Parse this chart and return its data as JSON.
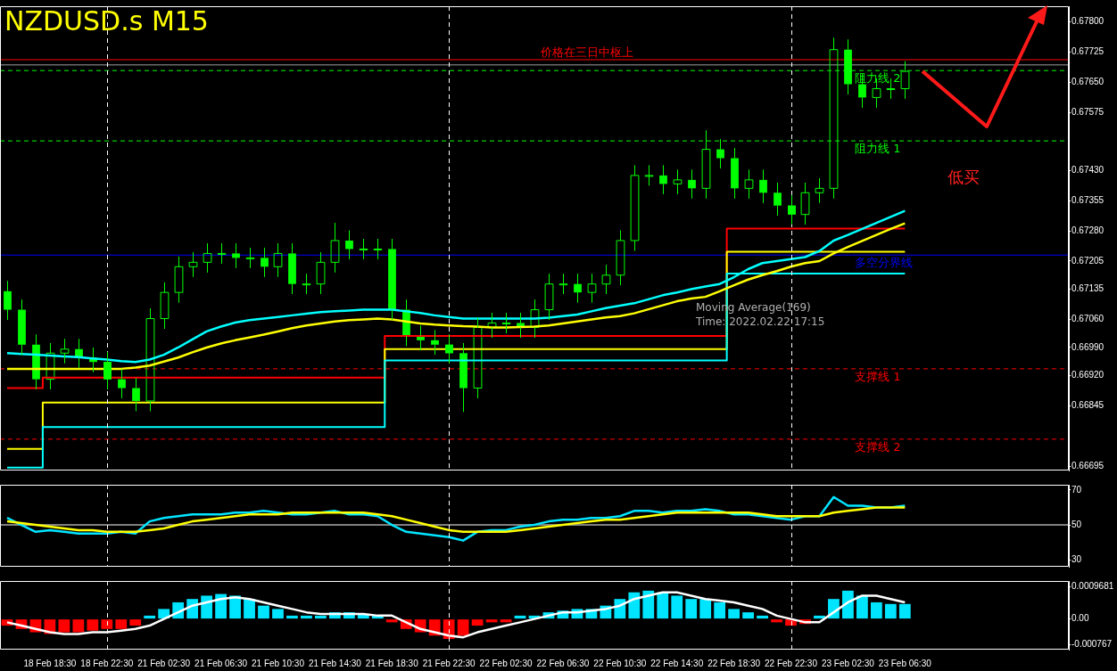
{
  "chart_data": [
    {
      "type": "candlestick",
      "title": "NZDUSD.s M15",
      "tick_labels": "y",
      "grid": false,
      "legend": false,
      "categories": [
        null,
        null,
        null,
        "18 Feb 18:30",
        null,
        null,
        null,
        "18 Feb 22:30",
        null,
        null,
        null,
        "21 Feb 02:30",
        null,
        null,
        null,
        "21 Feb 06:30",
        null,
        null,
        null,
        "21 Feb 10:30",
        null,
        null,
        null,
        "21 Feb 14:30",
        null,
        null,
        null,
        "21 Feb 18:30",
        null,
        null,
        null,
        "21 Feb 22:30",
        null,
        null,
        null,
        "22 Feb 02:30",
        null,
        null,
        null,
        "22 Feb 06:30",
        null,
        null,
        null,
        "22 Feb 10:30",
        null,
        null,
        null,
        "22 Feb 14:30",
        null,
        null,
        null,
        "22 Feb 18:30",
        null,
        null,
        null,
        "22 Feb 22:30",
        null,
        null,
        null,
        "23 Feb 02:30",
        null,
        null,
        null,
        "23 Feb 06:30",
        null,
        null,
        null,
        null,
        null,
        null,
        null,
        null,
        null,
        null,
        null
      ],
      "ylim": [
        0.66684,
        0.67839
      ],
      "yticks": [
        {
          "value": 0.678,
          "label": "0.67800"
        },
        {
          "value": 0.67725,
          "label": "0.67725"
        },
        {
          "value": 0.6765,
          "label": "0.67650"
        },
        {
          "value": 0.67575,
          "label": "0.67575"
        },
        {
          "value": 0.6743,
          "label": "0.67430"
        },
        {
          "value": 0.67355,
          "label": "0.67355"
        },
        {
          "value": 0.6728,
          "label": "0.67280"
        },
        {
          "value": 0.67205,
          "label": "0.67205"
        },
        {
          "value": 0.67135,
          "label": "0.67135"
        },
        {
          "value": 0.6706,
          "label": "0.67060"
        },
        {
          "value": 0.6699,
          "label": "0.66990"
        },
        {
          "value": 0.6692,
          "label": "0.66920"
        },
        {
          "value": 0.66845,
          "label": "0.66845"
        },
        {
          "value": 0.66695,
          "label": "0.66695"
        }
      ],
      "series": [
        {
          "type": "line",
          "color": "#00ffff",
          "values": [
            0.66976,
            0.66974,
            0.66972,
            0.6697,
            0.66968,
            0.66966,
            0.66963,
            0.6696,
            0.66956,
            0.66954,
            0.6696,
            0.66972,
            0.6699,
            0.6701,
            0.6703,
            0.67042,
            0.67052,
            0.67058,
            0.67062,
            0.67066,
            0.6707,
            0.67074,
            0.67078,
            0.6708,
            0.67082,
            0.67084,
            0.67084,
            0.67084,
            0.6708,
            0.67076,
            0.6707,
            0.67066,
            0.67062,
            0.67062,
            0.67062,
            0.67062,
            0.67062,
            0.67062,
            0.67064,
            0.67068,
            0.67072,
            0.6708,
            0.67088,
            0.67094,
            0.671,
            0.6711,
            0.6712,
            0.67127,
            0.67135,
            0.67142,
            0.67148,
            0.67165,
            0.67185,
            0.672,
            0.67205,
            0.6721,
            0.67215,
            0.6723,
            0.67256,
            0.6727,
            0.67285,
            0.673,
            0.67315,
            0.6733,
            null,
            null,
            null,
            null,
            null,
            null,
            null,
            null,
            null,
            null,
            null
          ]
        },
        {
          "type": "line",
          "color": "#ffff00",
          "values": [
            0.66937,
            0.66937,
            0.66937,
            0.66937,
            0.66937,
            0.66937,
            0.66937,
            0.66937,
            0.66937,
            0.6694,
            0.66945,
            0.66955,
            0.66965,
            0.66978,
            0.6699,
            0.67,
            0.67008,
            0.67015,
            0.67022,
            0.6703,
            0.67038,
            0.67045,
            0.6705,
            0.67055,
            0.67058,
            0.6706,
            0.67062,
            0.6706,
            0.67055,
            0.6705,
            0.67047,
            0.67045,
            0.67043,
            0.67042,
            0.6704,
            0.6704,
            0.67041,
            0.67042,
            0.67045,
            0.6705,
            0.67055,
            0.6706,
            0.67065,
            0.67068,
            0.67075,
            0.67085,
            0.67095,
            0.67105,
            0.67112,
            0.67116,
            0.6713,
            0.67145,
            0.67159,
            0.6717,
            0.6718,
            0.67191,
            0.672,
            0.67205,
            0.67224,
            0.6724,
            0.67255,
            0.6727,
            0.67285,
            0.67299,
            null,
            null,
            null,
            null,
            null,
            null,
            null,
            null,
            null,
            null,
            null
          ]
        },
        {
          "type": "step",
          "color": "#00ffff",
          "values": [
            0.66691,
            0.66691,
            0.66691,
            0.66792,
            0.66792,
            0.66792,
            0.66792,
            0.66792,
            0.66792,
            0.66792,
            0.66792,
            0.66792,
            0.66792,
            0.66792,
            0.66792,
            0.66792,
            0.66792,
            0.66792,
            0.66792,
            0.66792,
            0.66792,
            0.66792,
            0.66792,
            0.66792,
            0.66792,
            0.66792,
            0.66792,
            0.66958,
            0.66958,
            0.66958,
            0.66958,
            0.66958,
            0.66958,
            0.66958,
            0.66958,
            0.66958,
            0.66958,
            0.66958,
            0.66958,
            0.66958,
            0.66958,
            0.66958,
            0.66958,
            0.66958,
            0.66958,
            0.66958,
            0.66958,
            0.66958,
            0.66958,
            0.66958,
            0.66958,
            0.67174,
            0.67174,
            0.67174,
            0.67174,
            0.67174,
            0.67174,
            0.67174,
            0.67174,
            0.67174,
            0.67174,
            0.67174,
            0.67174,
            0.67174,
            null,
            null,
            null,
            null,
            null,
            null,
            null,
            null,
            null,
            null,
            null
          ]
        },
        {
          "type": "step",
          "color": "#ffff00",
          "values": [
            0.66738,
            0.66738,
            0.66738,
            0.66853,
            0.66853,
            0.66853,
            0.66853,
            0.66853,
            0.66853,
            0.66853,
            0.66853,
            0.66853,
            0.66853,
            0.66853,
            0.66853,
            0.66853,
            0.66853,
            0.66853,
            0.66853,
            0.66853,
            0.66853,
            0.66853,
            0.66853,
            0.66853,
            0.66853,
            0.66853,
            0.66853,
            0.66986,
            0.66986,
            0.66986,
            0.66986,
            0.66986,
            0.66986,
            0.66986,
            0.66986,
            0.66986,
            0.66986,
            0.66986,
            0.66986,
            0.66986,
            0.66986,
            0.66986,
            0.66986,
            0.66986,
            0.66986,
            0.66986,
            0.66986,
            0.66986,
            0.66986,
            0.66986,
            0.66986,
            0.67228,
            0.67228,
            0.67228,
            0.67228,
            0.67228,
            0.67228,
            0.67228,
            0.67228,
            0.67228,
            0.67228,
            0.67228,
            0.67228,
            0.67228,
            null,
            null,
            null,
            null,
            null,
            null,
            null,
            null,
            null,
            null,
            null
          ]
        },
        {
          "type": "step",
          "color": "#ff0000",
          "values": [
            0.66889,
            0.66889,
            0.66889,
            0.66915,
            0.66915,
            0.66915,
            0.66915,
            0.66915,
            0.66915,
            0.66915,
            0.66915,
            0.66915,
            0.66915,
            0.66915,
            0.66915,
            0.66915,
            0.66915,
            0.66915,
            0.66915,
            0.66915,
            0.66915,
            0.66915,
            0.66915,
            0.66915,
            0.66915,
            0.66915,
            0.66915,
            0.67019,
            0.67019,
            0.67019,
            0.67019,
            0.67019,
            0.67019,
            0.67019,
            0.67019,
            0.67019,
            0.67019,
            0.67019,
            0.67019,
            0.67019,
            0.67019,
            0.67019,
            0.67019,
            0.67019,
            0.67019,
            0.67019,
            0.67019,
            0.67019,
            0.67019,
            0.67019,
            0.67019,
            0.67286,
            0.67286,
            0.67286,
            0.67286,
            0.67286,
            0.67286,
            0.67286,
            0.67286,
            0.67286,
            0.67286,
            0.67286,
            0.67286,
            0.67286,
            null,
            null,
            null,
            null,
            null,
            null,
            null,
            null,
            null,
            null,
            null
          ]
        },
        {
          "color": "#00ff00",
          "ohlc": [
            [
              0.6713,
              0.67155,
              0.67059,
              0.67084
            ],
            [
              0.67084,
              0.67109,
              0.66972,
              0.66997
            ],
            [
              0.66997,
              0.67022,
              0.66886,
              0.66911
            ],
            [
              0.66911,
              0.67001,
              0.66886,
              0.66976
            ],
            [
              0.66976,
              0.67011,
              0.66951,
              0.66986
            ],
            [
              0.66986,
              0.67011,
              0.6694,
              0.66965
            ],
            [
              0.66965,
              0.6699,
              0.66929,
              0.66954
            ],
            [
              0.66954,
              0.66979,
              0.66886,
              0.66911
            ],
            [
              0.66911,
              0.66936,
              0.66864,
              0.66889
            ],
            [
              0.66889,
              0.66914,
              0.66832,
              0.66857
            ],
            [
              0.66857,
              0.67087,
              0.66832,
              0.67062
            ],
            [
              0.67062,
              0.67152,
              0.67037,
              0.67127
            ],
            [
              0.67127,
              0.67216,
              0.67102,
              0.67191
            ],
            [
              0.67191,
              0.67227,
              0.67166,
              0.67202
            ],
            [
              0.67202,
              0.67249,
              0.67177,
              0.67224
            ],
            [
              0.67224,
              0.67249,
              0.67199,
              0.67224
            ],
            [
              0.67224,
              0.67249,
              0.67188,
              0.67213
            ],
            [
              0.67213,
              0.67238,
              0.67188,
              0.67213
            ],
            [
              0.67213,
              0.67238,
              0.67166,
              0.67191
            ],
            [
              0.67191,
              0.67249,
              0.67166,
              0.67224
            ],
            [
              0.67224,
              0.67249,
              0.67123,
              0.67148
            ],
            [
              0.67148,
              0.67173,
              0.67123,
              0.67148
            ],
            [
              0.67148,
              0.67227,
              0.67123,
              0.67202
            ],
            [
              0.67202,
              0.673,
              0.67177,
              0.67256
            ],
            [
              0.67256,
              0.67281,
              0.6721,
              0.67235
            ],
            [
              0.67235,
              0.6726,
              0.6721,
              0.67235
            ],
            [
              0.67235,
              0.6726,
              0.6721,
              0.67235
            ],
            [
              0.67235,
              0.6726,
              0.67059,
              0.67084
            ],
            [
              0.67084,
              0.67109,
              0.66994,
              0.67019
            ],
            [
              0.67019,
              0.67044,
              0.66983,
              0.67008
            ],
            [
              0.67008,
              0.67033,
              0.66972,
              0.66997
            ],
            [
              0.66997,
              0.67022,
              0.66951,
              0.66976
            ],
            [
              0.66976,
              0.67001,
              0.6683,
              0.66889
            ],
            [
              0.66889,
              0.67065,
              0.66864,
              0.6704
            ],
            [
              0.6704,
              0.67076,
              0.67015,
              0.67051
            ],
            [
              0.67051,
              0.67076,
              0.67026,
              0.67051
            ],
            [
              0.67051,
              0.67076,
              0.67015,
              0.6704
            ],
            [
              0.6704,
              0.67109,
              0.67015,
              0.67084
            ],
            [
              0.67084,
              0.67173,
              0.67059,
              0.67148
            ],
            [
              0.67148,
              0.67173,
              0.67123,
              0.67148
            ],
            [
              0.67148,
              0.67173,
              0.67102,
              0.67127
            ],
            [
              0.67127,
              0.67173,
              0.67102,
              0.67148
            ],
            [
              0.67148,
              0.67195,
              0.67123,
              0.6717
            ],
            [
              0.6717,
              0.67281,
              0.67145,
              0.67256
            ],
            [
              0.67256,
              0.67443,
              0.67231,
              0.67418
            ],
            [
              0.67418,
              0.67443,
              0.67393,
              0.67418
            ],
            [
              0.67418,
              0.67443,
              0.67372,
              0.67397
            ],
            [
              0.67397,
              0.67432,
              0.67372,
              0.67407
            ],
            [
              0.67407,
              0.67432,
              0.67361,
              0.67386
            ],
            [
              0.67386,
              0.6753,
              0.67361,
              0.67483
            ],
            [
              0.67483,
              0.67508,
              0.67436,
              0.67461
            ],
            [
              0.67461,
              0.67486,
              0.67361,
              0.67386
            ],
            [
              0.67386,
              0.67432,
              0.67361,
              0.67407
            ],
            [
              0.67407,
              0.67432,
              0.6735,
              0.67375
            ],
            [
              0.67375,
              0.674,
              0.67318,
              0.67343
            ],
            [
              0.67343,
              0.67368,
              0.67296,
              0.67321
            ],
            [
              0.67321,
              0.674,
              0.67296,
              0.67375
            ],
            [
              0.67375,
              0.67411,
              0.6735,
              0.67386
            ],
            [
              0.67386,
              0.6776,
              0.67361,
              0.67731
            ],
            [
              0.67731,
              0.67756,
              0.6762,
              0.67645
            ],
            [
              0.67645,
              0.6767,
              0.67587,
              0.67612
            ],
            [
              0.67612,
              0.67659,
              0.67587,
              0.67634
            ],
            [
              0.67634,
              0.67659,
              0.67609,
              0.67634
            ],
            [
              0.67634,
              0.67702,
              0.67609,
              0.67677
            ],
            null,
            null,
            null,
            null,
            null,
            null,
            null,
            null,
            null,
            null,
            null
          ]
        }
      ],
      "ref_lines": [
        {
          "axis": "y",
          "value": 0.67706,
          "label": "价格在三日中枢上",
          "color": "#ff0000",
          "line_style": "solid"
        },
        {
          "axis": "y",
          "value": 0.67693,
          "label": null,
          "color": "#a0a0a0",
          "line_style": "solid"
        },
        {
          "axis": "y",
          "value": 0.67679,
          "label": "阻力线 2",
          "color": "#00ff00",
          "line_style": "dashed"
        },
        {
          "axis": "y",
          "value": 0.67504,
          "label": "阻力线 1",
          "color": "#00ff00",
          "line_style": "dashed"
        },
        {
          "axis": "y",
          "value": 0.6722,
          "label": "多空分界线",
          "color": "#0000ff",
          "line_style": "solid"
        },
        {
          "axis": "y",
          "value": 0.66937,
          "label": "支撑线 1",
          "color": "#ff0000",
          "line_style": "dashed"
        },
        {
          "axis": "y",
          "value": 0.66762,
          "label": "支撑线 2",
          "color": "#ff0000",
          "line_style": "dashed"
        },
        {
          "axis": "x",
          "value": "18 Feb 22:30",
          "color": "#ffffff",
          "line_style": "dashed"
        },
        {
          "axis": "x",
          "value": "21 Feb 22:30",
          "color": "#ffffff",
          "line_style": "dashed"
        },
        {
          "axis": "x",
          "value": "22 Feb 22:30",
          "color": "#ffffff",
          "line_style": "dashed"
        }
      ],
      "annotations": [
        "低买",
        "Moving Average(169)",
        "Time: 2022.02.22 17:15"
      ]
    },
    {
      "type": "line",
      "tick_labels": "y",
      "grid": false,
      "legend": false,
      "categories": [
        null,
        null,
        null,
        "18 Feb 18:30",
        null,
        null,
        null,
        "18 Feb 22:30",
        null,
        null,
        null,
        "21 Feb 02:30",
        null,
        null,
        null,
        "21 Feb 06:30",
        null,
        null,
        null,
        "21 Feb 10:30",
        null,
        null,
        null,
        "21 Feb 14:30",
        null,
        null,
        null,
        "21 Feb 18:30",
        null,
        null,
        null,
        "21 Feb 22:30",
        null,
        null,
        null,
        "22 Feb 02:30",
        null,
        null,
        null,
        "22 Feb 06:30",
        null,
        null,
        null,
        "22 Feb 10:30",
        null,
        null,
        null,
        "22 Feb 14:30",
        null,
        null,
        null,
        "22 Feb 18:30",
        null,
        null,
        null,
        "22 Feb 22:30",
        null,
        null,
        null,
        "23 Feb 02:30",
        null,
        null,
        null,
        "23 Feb 06:30",
        null,
        null,
        null,
        null,
        null,
        null,
        null,
        null,
        null,
        null,
        null
      ],
      "ylim": [
        26,
        73
      ],
      "yticks": [
        30,
        50,
        70
      ],
      "series": [
        {
          "color": "#ffff00",
          "values": [
            52,
            51,
            50,
            49,
            48,
            47,
            47,
            46,
            46,
            46,
            47,
            48,
            50,
            52,
            53,
            54,
            55,
            56,
            56,
            56,
            57,
            57,
            57,
            57,
            57,
            57,
            56,
            55,
            53,
            51,
            49,
            47,
            46,
            46,
            46,
            46,
            47,
            48,
            49,
            50,
            51,
            52,
            53,
            53,
            54,
            55,
            56,
            57,
            57,
            57,
            57,
            57,
            57,
            56,
            55,
            55,
            55,
            55,
            57,
            58,
            59,
            60,
            60,
            60,
            null,
            null,
            null,
            null,
            null,
            null,
            null,
            null,
            null,
            null,
            null
          ]
        },
        {
          "color": "#00e5ff",
          "values": [
            54,
            50,
            46,
            47,
            46,
            45,
            45,
            45,
            46,
            45,
            52,
            54,
            55,
            56,
            56,
            56,
            57,
            57,
            58,
            57,
            56,
            56,
            57,
            58,
            56,
            56,
            55,
            50,
            46,
            45,
            44,
            43,
            41,
            46,
            47,
            47,
            49,
            50,
            52,
            53,
            53,
            54,
            54,
            55,
            58,
            58,
            57,
            58,
            58,
            59,
            58,
            56,
            56,
            55,
            54,
            53,
            55,
            55,
            66,
            61,
            61,
            60,
            60,
            61,
            null,
            null,
            null,
            null,
            null,
            null,
            null,
            null,
            null,
            null,
            null
          ]
        }
      ],
      "ref_lines": [
        {
          "axis": "y",
          "value": 50,
          "color": "#ffffff",
          "line_style": "solid"
        },
        {
          "axis": "x",
          "value": "18 Feb 22:30",
          "color": "#ffffff",
          "line_style": "dashed"
        },
        {
          "axis": "x",
          "value": "21 Feb 22:30",
          "color": "#ffffff",
          "line_style": "dashed"
        },
        {
          "axis": "x",
          "value": "22 Feb 22:30",
          "color": "#ffffff",
          "line_style": "dashed"
        }
      ]
    },
    {
      "type": "bar",
      "grid": false,
      "legend": false,
      "categories": [
        null,
        null,
        null,
        "18 Feb 18:30",
        null,
        null,
        null,
        "18 Feb 22:30",
        null,
        null,
        null,
        "21 Feb 02:30",
        null,
        null,
        null,
        "21 Feb 06:30",
        null,
        null,
        null,
        "21 Feb 10:30",
        null,
        null,
        null,
        "21 Feb 14:30",
        null,
        null,
        null,
        "21 Feb 18:30",
        null,
        null,
        null,
        "21 Feb 22:30",
        null,
        null,
        null,
        "22 Feb 02:30",
        null,
        null,
        null,
        "22 Feb 06:30",
        null,
        null,
        null,
        "22 Feb 10:30",
        null,
        null,
        null,
        "22 Feb 14:30",
        null,
        null,
        null,
        "22 Feb 18:30",
        null,
        null,
        null,
        "22 Feb 22:30",
        null,
        null,
        null,
        "23 Feb 02:30",
        null,
        null,
        null,
        "23 Feb 06:30",
        null,
        null,
        null,
        null,
        null,
        null,
        null,
        null,
        null,
        null,
        null
      ],
      "ylim": [
        -0.00092,
        0.00114
      ],
      "yticks": [
        0.0009681,
        {
          "value": 0,
          "label": "0.00"
        },
        -0.000767
      ],
      "series": [
        {
          "colors": [
            "#ff0000",
            "#ff0000",
            "#ff0000",
            "#ff0000",
            "#ff0000",
            "#ff0000",
            "#ff0000",
            "#ff0000",
            "#ff0000",
            "#ff0000",
            "#00e5ff",
            "#00e5ff",
            "#00e5ff",
            "#00e5ff",
            "#00e5ff",
            "#00e5ff",
            "#00e5ff",
            "#00e5ff",
            "#00e5ff",
            "#00e5ff",
            "#00e5ff",
            "#00e5ff",
            "#00e5ff",
            "#00e5ff",
            "#00e5ff",
            "#00e5ff",
            "#00e5ff",
            "#ff0000",
            "#ff0000",
            "#ff0000",
            "#ff0000",
            "#ff0000",
            "#ff0000",
            "#ff0000",
            "#ff0000",
            "#ff0000",
            "#00e5ff",
            "#00e5ff",
            "#00e5ff",
            "#00e5ff",
            "#00e5ff",
            "#00e5ff",
            "#00e5ff",
            "#00e5ff",
            "#00e5ff",
            "#00e5ff",
            "#00e5ff",
            "#00e5ff",
            "#00e5ff",
            "#00e5ff",
            "#00e5ff",
            "#00e5ff",
            "#00e5ff",
            "#00e5ff",
            "#ff0000",
            "#ff0000",
            "#ff0000",
            "#00e5ff",
            "#00e5ff",
            "#00e5ff",
            "#00e5ff",
            "#00e5ff",
            "#00e5ff",
            "#00e5ff",
            null,
            null,
            null,
            null,
            null,
            null,
            null,
            null,
            null,
            null,
            null
          ],
          "values": [
            -0.0002,
            -0.0003,
            -0.0004,
            -0.00045,
            -0.0004,
            -0.0004,
            -0.00035,
            -0.0003,
            -0.0003,
            -0.0002,
            0.0001,
            0.0003,
            0.0005,
            0.0006,
            0.0007,
            0.00075,
            0.0007,
            0.0006,
            0.0004,
            0.0003,
            0.0001,
            0.0001,
            0.0001,
            0.0002,
            0.0002,
            0.00015,
            0.0001,
            -0.0001,
            -0.0003,
            -0.0004,
            -0.0005,
            -0.0006,
            -0.0005,
            -0.0002,
            -0.0001,
            -0.0001,
            0.0001,
            0.0001,
            0.0002,
            0.00025,
            0.0003,
            0.0003,
            0.0004,
            0.0006,
            0.0008,
            0.00085,
            0.0008,
            0.0007,
            0.0006,
            0.0006,
            0.0005,
            0.0003,
            0.0002,
            0.0001,
            -0.0001,
            -0.0002,
            -0.00015,
            0.0001,
            0.0006,
            0.00085,
            0.0007,
            0.0005,
            0.00045,
            0.00045,
            null,
            null,
            null,
            null,
            null,
            null,
            null,
            null,
            null,
            null,
            null
          ]
        },
        {
          "type": "line",
          "color": "#ffffff",
          "values": [
            -0.0001,
            -0.0002,
            -0.0003,
            -0.0004,
            -0.00045,
            -0.00045,
            -0.0004,
            -0.0004,
            -0.00035,
            -0.0003,
            -0.0002,
            0,
            0.0002,
            0.0004,
            0.0005,
            0.0006,
            0.00065,
            0.0006,
            0.0005,
            0.0004,
            0.0003,
            0.0002,
            0.00015,
            0.00015,
            0.00015,
            0.00015,
            0.0001,
            0.0001,
            -0.0001,
            -0.0003,
            -0.0004,
            -0.0005,
            -0.00055,
            -0.0004,
            -0.0003,
            -0.0002,
            -0.0001,
            0,
            0.0001,
            0.0002,
            0.0002,
            0.00025,
            0.0003,
            0.0004,
            0.0006,
            0.0007,
            0.0008,
            0.0008,
            0.0007,
            0.0006,
            0.00055,
            0.0005,
            0.0004,
            0.0003,
            0.0001,
            0,
            -0.0001,
            -0.0001,
            0.0002,
            0.0005,
            0.0007,
            0.0007,
            0.0006,
            0.0005,
            null,
            null,
            null,
            null,
            null,
            null,
            null,
            null,
            null,
            null,
            null
          ]
        }
      ],
      "ref_lines": [
        {
          "axis": "x",
          "value": "18 Feb 22:30",
          "color": "#ffffff",
          "line_style": "dashed"
        },
        {
          "axis": "x",
          "value": "21 Feb 22:30",
          "color": "#ffffff",
          "line_style": "dashed"
        },
        {
          "axis": "x",
          "value": "22 Feb 22:30",
          "color": "#ffffff",
          "line_style": "dashed"
        }
      ]
    }
  ]
}
